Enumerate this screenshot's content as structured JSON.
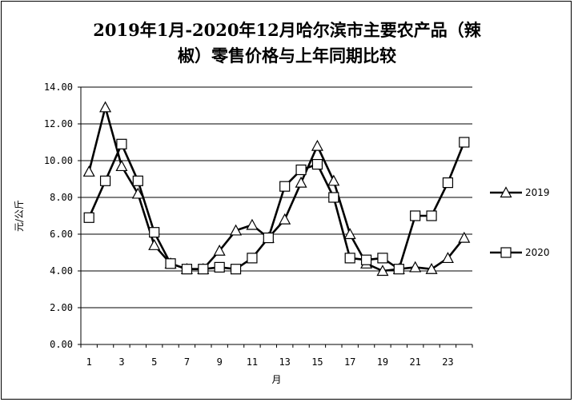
{
  "chart_data": {
    "type": "line",
    "title_line1": "2019年1月-2020年12月哈尔滨市主要农产品（辣",
    "title_line2": "椒）零售价格与上年同期比较",
    "xlabel": "月",
    "ylabel": "元/公斤",
    "ylim": [
      0,
      14
    ],
    "y_ticks": [
      "0.00",
      "2.00",
      "4.00",
      "6.00",
      "8.00",
      "10.00",
      "12.00",
      "14.00"
    ],
    "x_ticks": [
      1,
      3,
      5,
      7,
      9,
      11,
      13,
      15,
      17,
      19,
      21,
      23
    ],
    "x": [
      1,
      2,
      3,
      4,
      5,
      6,
      7,
      8,
      9,
      10,
      11,
      12,
      13,
      14,
      15,
      16,
      17,
      18,
      19,
      20,
      21,
      22,
      23,
      24
    ],
    "grid": true,
    "legend_position": "right",
    "series": [
      {
        "name": "2019",
        "marker": "triangle",
        "color": "#000000",
        "values": [
          9.4,
          12.9,
          9.7,
          8.2,
          5.4,
          4.4,
          4.1,
          4.1,
          5.1,
          6.2,
          6.5,
          5.8,
          6.8,
          8.8,
          10.8,
          8.9,
          6.0,
          4.4,
          4.0,
          4.1,
          4.2,
          4.1,
          4.7,
          5.8
        ]
      },
      {
        "name": "2020",
        "marker": "square",
        "color": "#000000",
        "values": [
          6.9,
          8.9,
          10.9,
          8.9,
          6.1,
          4.4,
          4.1,
          4.1,
          4.2,
          4.1,
          4.7,
          5.8,
          8.6,
          9.5,
          9.8,
          8.0,
          4.7,
          4.6,
          4.7,
          4.1,
          7.0,
          7.0,
          8.8,
          11.0
        ]
      }
    ]
  }
}
